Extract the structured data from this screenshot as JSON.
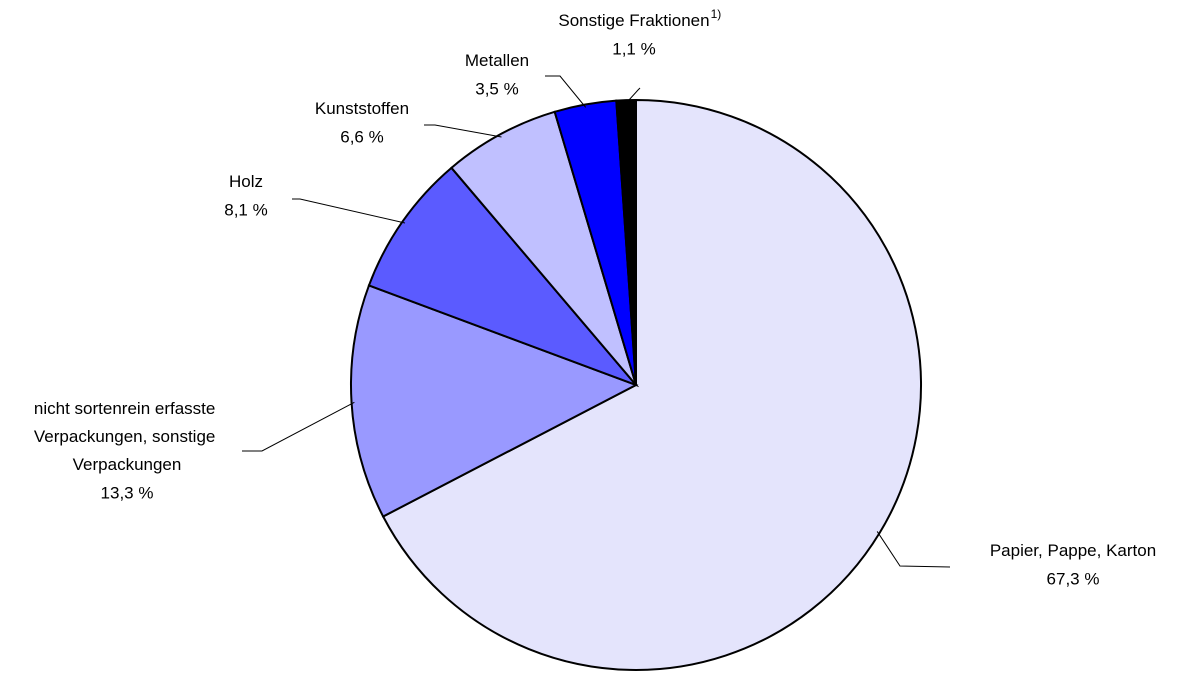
{
  "chart_data": {
    "type": "pie",
    "categories": [
      "Papier, Pappe, Karton",
      "nicht sortenrein erfasste Verpackungen, sonstige Verpackungen",
      "Holz",
      "Kunststoffen",
      "Metallen",
      "Sonstige Fraktionen"
    ],
    "values": [
      67.3,
      13.3,
      8.1,
      6.6,
      3.5,
      1.1
    ],
    "value_labels": [
      "67,3 %",
      "13,3 %",
      "8,1 %",
      "6,6 %",
      "3,5 %",
      "1,1 %"
    ],
    "label_notes": [
      null,
      null,
      null,
      null,
      null,
      "1)"
    ],
    "colors": [
      "#e4e4fc",
      "#9999ff",
      "#5b5bff",
      "#c0c0ff",
      "#0000ff",
      "#000000"
    ]
  }
}
